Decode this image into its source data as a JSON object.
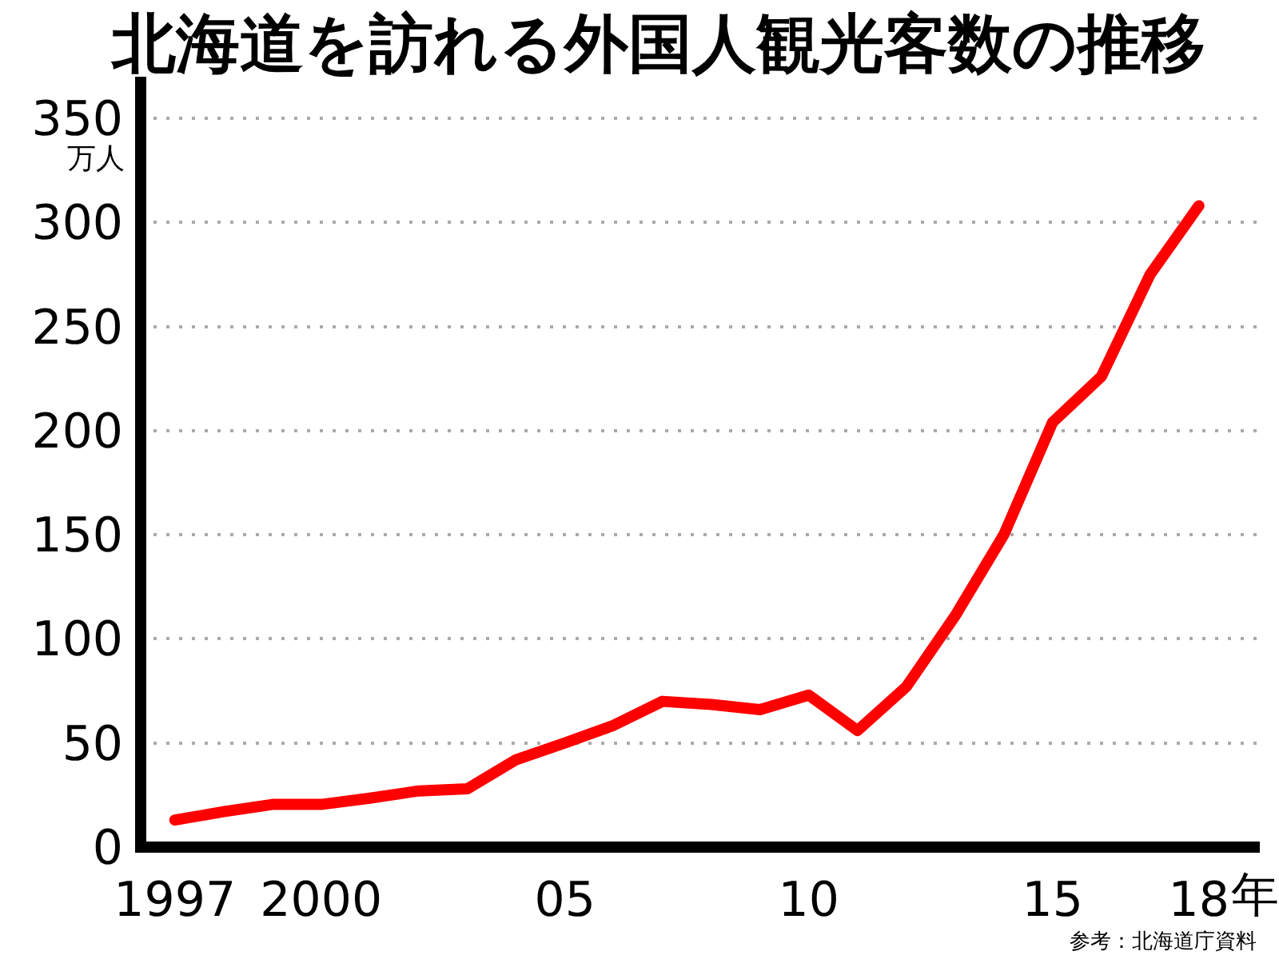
{
  "chart_data": {
    "type": "line",
    "title": "北海道を訪れる外国人観光客数の推移",
    "ylabel": "万人",
    "xlabel": "年",
    "x": [
      1997,
      1998,
      1999,
      2000,
      2001,
      2002,
      2003,
      2004,
      2005,
      2006,
      2007,
      2008,
      2009,
      2010,
      2011,
      2012,
      2013,
      2014,
      2015,
      2016,
      2017,
      2018
    ],
    "series": [
      {
        "color": "#ff0000",
        "values": [
          13,
          17,
          20.5,
          20.5,
          23.5,
          27,
          28,
          42,
          50,
          58.5,
          70,
          68.5,
          66,
          73,
          56,
          77,
          111,
          150,
          204,
          226,
          275,
          308
        ]
      }
    ],
    "xlim": [
      1996.3,
      2019.25
    ],
    "xticks": [
      1997,
      2000,
      {
        "value": 2005,
        "label": "05"
      },
      {
        "value": 2010,
        "label": "10"
      },
      {
        "value": 2015,
        "label": "15"
      },
      {
        "value": 2018,
        "label": "18"
      }
    ],
    "ylim": [
      0,
      370
    ],
    "yticks": [
      0,
      50,
      100,
      150,
      200,
      250,
      300,
      350
    ],
    "grid": "y",
    "line_style": "solid",
    "annotations": [
      "参考：北海道庁資料"
    ]
  }
}
